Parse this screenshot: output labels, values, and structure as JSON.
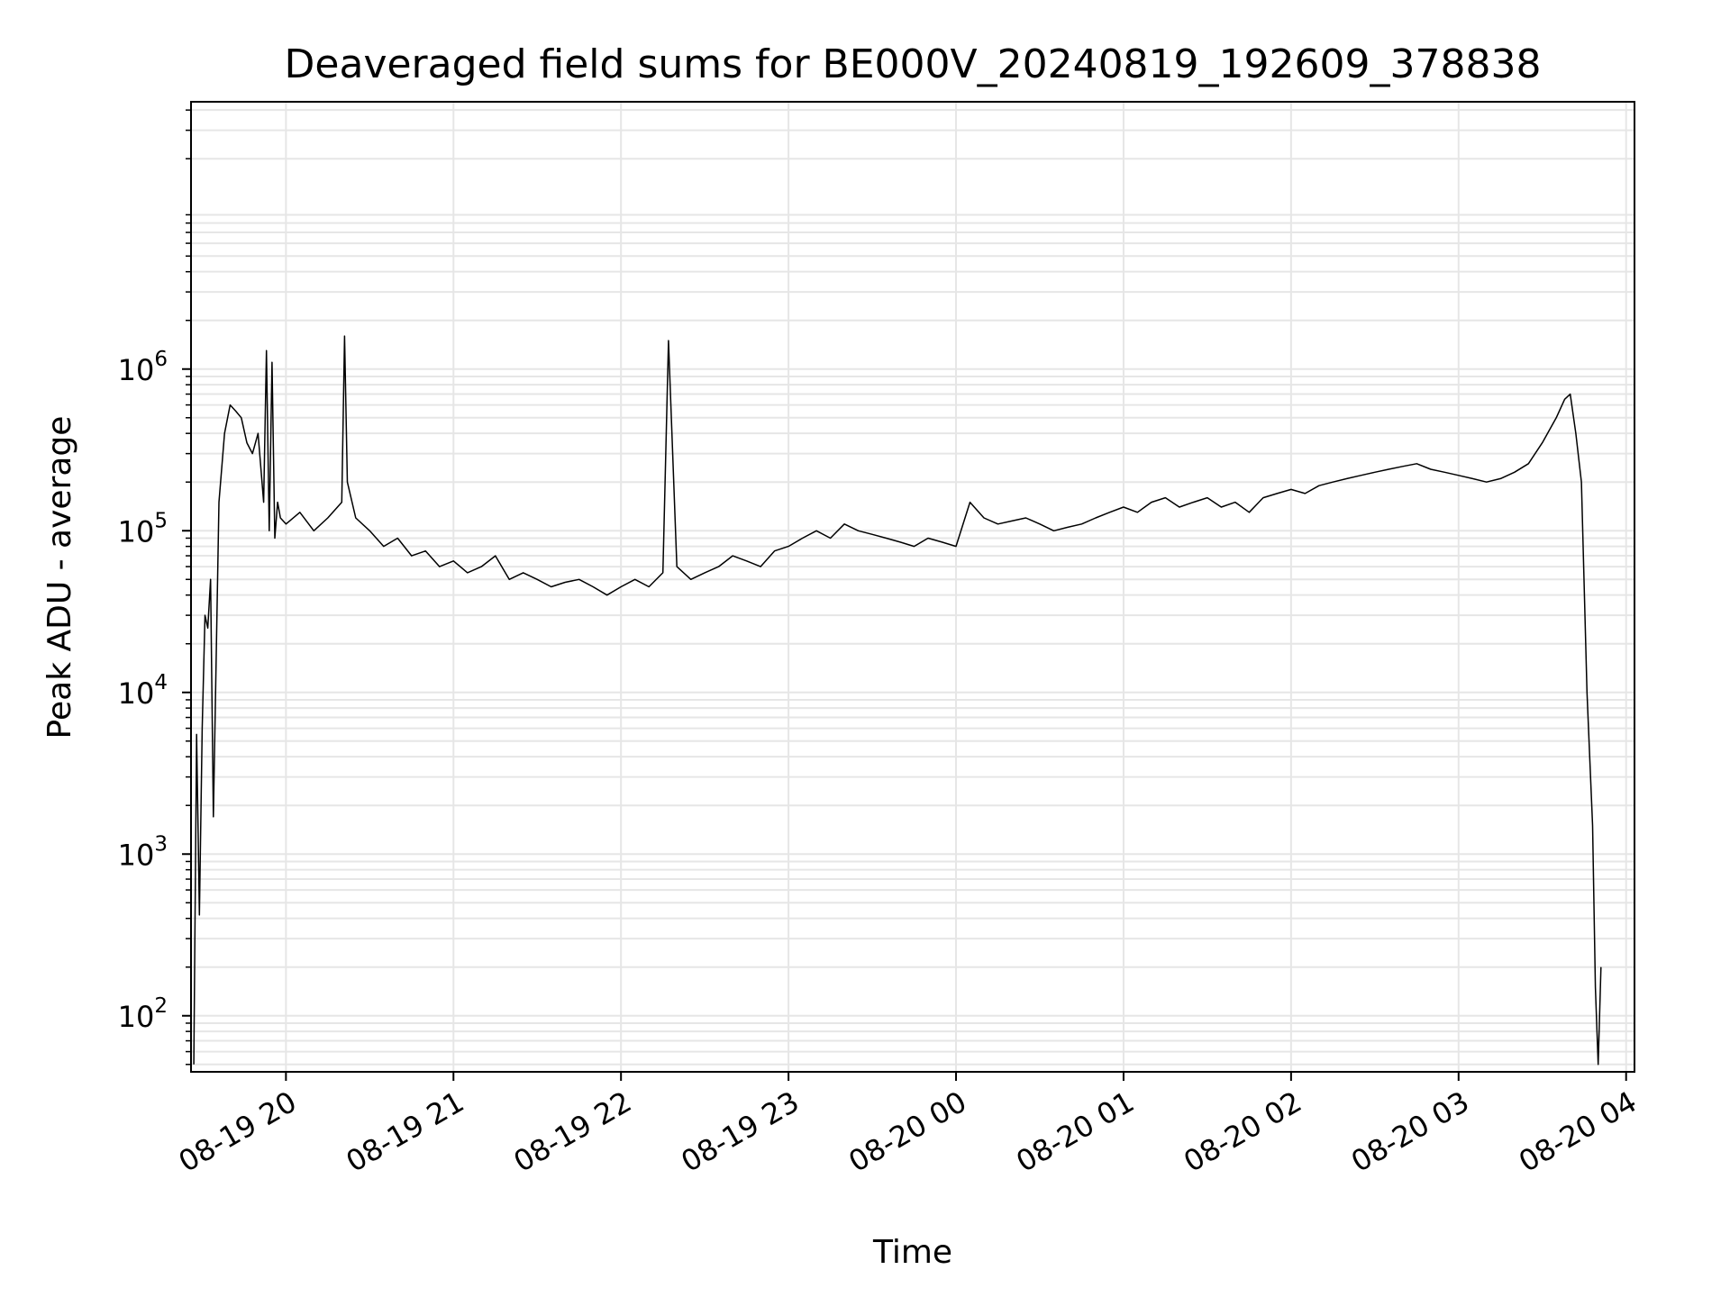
{
  "chart_data": {
    "type": "line",
    "title": "Deaveraged field sums for BE000V_20240819_192609_378838",
    "xlabel": "Time",
    "ylabel": "Peak ADU - average",
    "yscale": "log",
    "ylim": [
      45,
      45000000
    ],
    "xlim": [
      "2024-08-19 19:26",
      "2024-08-20 04:03"
    ],
    "grid": true,
    "line_color": "#000000",
    "grid_color": "#e6e6e6",
    "x_ticks": [
      {
        "value": "2024-08-19 20:00",
        "label": "08-19 20"
      },
      {
        "value": "2024-08-19 21:00",
        "label": "08-19 21"
      },
      {
        "value": "2024-08-19 22:00",
        "label": "08-19 22"
      },
      {
        "value": "2024-08-19 23:00",
        "label": "08-19 23"
      },
      {
        "value": "2024-08-20 00:00",
        "label": "08-20 00"
      },
      {
        "value": "2024-08-20 01:00",
        "label": "08-20 01"
      },
      {
        "value": "2024-08-20 02:00",
        "label": "08-20 02"
      },
      {
        "value": "2024-08-20 03:00",
        "label": "08-20 03"
      },
      {
        "value": "2024-08-20 04:00",
        "label": "08-20 04"
      }
    ],
    "y_ticks": [
      {
        "value": 100,
        "base": "10",
        "exp": "2"
      },
      {
        "value": 1000,
        "base": "10",
        "exp": "3"
      },
      {
        "value": 10000,
        "base": "10",
        "exp": "4"
      },
      {
        "value": 100000,
        "base": "10",
        "exp": "5"
      },
      {
        "value": 1000000,
        "base": "10",
        "exp": "6"
      }
    ],
    "series": [
      {
        "x": [
          "2024-08-19 19:27",
          "2024-08-19 19:28",
          "2024-08-19 19:29",
          "2024-08-19 19:30",
          "2024-08-19 19:31",
          "2024-08-19 19:32",
          "2024-08-19 19:33",
          "2024-08-19 19:34",
          "2024-08-19 19:36",
          "2024-08-19 19:38",
          "2024-08-19 19:40",
          "2024-08-19 19:42",
          "2024-08-19 19:44",
          "2024-08-19 19:46",
          "2024-08-19 19:48",
          "2024-08-19 19:50",
          "2024-08-19 19:52",
          "2024-08-19 19:53",
          "2024-08-19 19:54",
          "2024-08-19 19:55",
          "2024-08-19 19:56",
          "2024-08-19 19:57",
          "2024-08-19 19:58",
          "2024-08-19 20:00",
          "2024-08-19 20:05",
          "2024-08-19 20:10",
          "2024-08-19 20:15",
          "2024-08-19 20:20",
          "2024-08-19 20:21",
          "2024-08-19 20:22",
          "2024-08-19 20:25",
          "2024-08-19 20:30",
          "2024-08-19 20:35",
          "2024-08-19 20:40",
          "2024-08-19 20:45",
          "2024-08-19 20:50",
          "2024-08-19 20:55",
          "2024-08-19 21:00",
          "2024-08-19 21:05",
          "2024-08-19 21:10",
          "2024-08-19 21:15",
          "2024-08-19 21:20",
          "2024-08-19 21:25",
          "2024-08-19 21:30",
          "2024-08-19 21:35",
          "2024-08-19 21:40",
          "2024-08-19 21:45",
          "2024-08-19 21:50",
          "2024-08-19 21:55",
          "2024-08-19 22:00",
          "2024-08-19 22:05",
          "2024-08-19 22:10",
          "2024-08-19 22:15",
          "2024-08-19 22:17",
          "2024-08-19 22:20",
          "2024-08-19 22:25",
          "2024-08-19 22:30",
          "2024-08-19 22:35",
          "2024-08-19 22:40",
          "2024-08-19 22:45",
          "2024-08-19 22:50",
          "2024-08-19 22:55",
          "2024-08-19 23:00",
          "2024-08-19 23:05",
          "2024-08-19 23:10",
          "2024-08-19 23:15",
          "2024-08-19 23:20",
          "2024-08-19 23:25",
          "2024-08-19 23:30",
          "2024-08-19 23:35",
          "2024-08-19 23:40",
          "2024-08-19 23:45",
          "2024-08-19 23:50",
          "2024-08-19 23:55",
          "2024-08-20 00:00",
          "2024-08-20 00:05",
          "2024-08-20 00:10",
          "2024-08-20 00:15",
          "2024-08-20 00:20",
          "2024-08-20 00:25",
          "2024-08-20 00:30",
          "2024-08-20 00:35",
          "2024-08-20 00:40",
          "2024-08-20 00:45",
          "2024-08-20 00:50",
          "2024-08-20 00:55",
          "2024-08-20 01:00",
          "2024-08-20 01:05",
          "2024-08-20 01:10",
          "2024-08-20 01:15",
          "2024-08-20 01:20",
          "2024-08-20 01:25",
          "2024-08-20 01:30",
          "2024-08-20 01:35",
          "2024-08-20 01:40",
          "2024-08-20 01:45",
          "2024-08-20 01:50",
          "2024-08-20 01:55",
          "2024-08-20 02:00",
          "2024-08-20 02:05",
          "2024-08-20 02:10",
          "2024-08-20 02:15",
          "2024-08-20 02:20",
          "2024-08-20 02:25",
          "2024-08-20 02:30",
          "2024-08-20 02:35",
          "2024-08-20 02:40",
          "2024-08-20 02:45",
          "2024-08-20 02:50",
          "2024-08-20 02:55",
          "2024-08-20 03:00",
          "2024-08-20 03:05",
          "2024-08-20 03:10",
          "2024-08-20 03:15",
          "2024-08-20 03:20",
          "2024-08-20 03:25",
          "2024-08-20 03:30",
          "2024-08-20 03:35",
          "2024-08-20 03:38",
          "2024-08-20 03:40",
          "2024-08-20 03:42",
          "2024-08-20 03:44",
          "2024-08-20 03:46",
          "2024-08-20 03:48",
          "2024-08-20 03:49",
          "2024-08-20 03:50",
          "2024-08-20 03:51"
        ],
        "y": [
          50,
          5500,
          420,
          6000,
          30000,
          25000,
          50000,
          1700,
          150000,
          400000,
          600000,
          550000,
          500000,
          350000,
          300000,
          400000,
          150000,
          1300000,
          100000,
          1100000,
          90000,
          150000,
          120000,
          110000,
          130000,
          100000,
          120000,
          150000,
          1600000,
          200000,
          120000,
          100000,
          80000,
          90000,
          70000,
          75000,
          60000,
          65000,
          55000,
          60000,
          70000,
          50000,
          55000,
          50000,
          45000,
          48000,
          50000,
          45000,
          40000,
          45000,
          50000,
          45000,
          55000,
          1500000,
          60000,
          50000,
          55000,
          60000,
          70000,
          65000,
          60000,
          75000,
          80000,
          90000,
          100000,
          90000,
          110000,
          100000,
          95000,
          90000,
          85000,
          80000,
          90000,
          85000,
          80000,
          150000,
          120000,
          110000,
          115000,
          120000,
          110000,
          100000,
          105000,
          110000,
          120000,
          130000,
          140000,
          130000,
          150000,
          160000,
          140000,
          150000,
          160000,
          140000,
          150000,
          130000,
          160000,
          170000,
          180000,
          170000,
          190000,
          200000,
          210000,
          220000,
          230000,
          240000,
          250000,
          260000,
          240000,
          230000,
          220000,
          210000,
          200000,
          210000,
          230000,
          260000,
          350000,
          500000,
          650000,
          700000,
          400000,
          200000,
          10000,
          1500,
          150,
          50,
          200
        ]
      }
    ]
  }
}
